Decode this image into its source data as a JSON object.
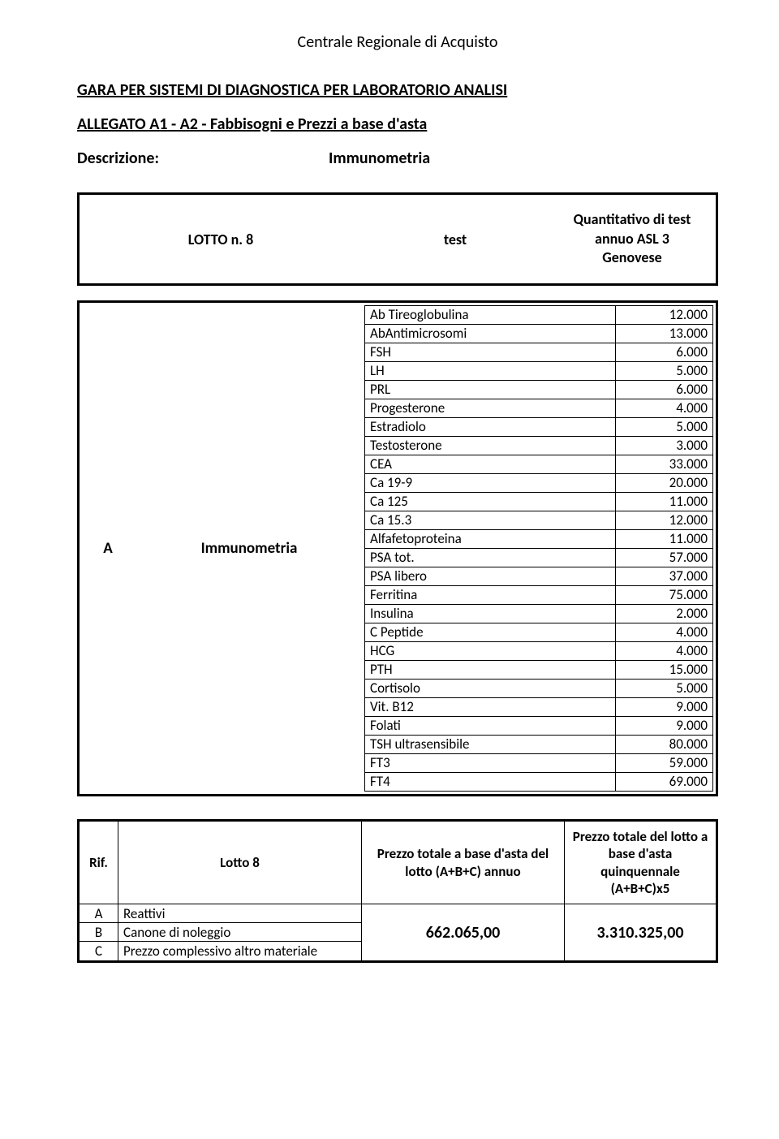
{
  "header": {
    "org": "Centrale Regionale di Acquisto",
    "title": "GARA PER SISTEMI DI DIAGNOSTICA PER LABORATORIO ANALISI",
    "subtitle": "ALLEGATO A1 - A2 - Fabbisogni e Prezzi a base d'asta",
    "desc_label": "Descrizione:",
    "desc_value": "Immunometria"
  },
  "lotto": {
    "name": "LOTTO n. 8",
    "mid": "test",
    "right": "Quantitativo di test annuo ASL 3 Genovese"
  },
  "section": {
    "code": "A",
    "label": "Immunometria",
    "rows": [
      {
        "name": "Ab Tireoglobulina",
        "value": "12.000"
      },
      {
        "name": "AbAntimicrosomi",
        "value": "13.000"
      },
      {
        "name": "FSH",
        "value": "6.000"
      },
      {
        "name": "LH",
        "value": "5.000"
      },
      {
        "name": "PRL",
        "value": "6.000"
      },
      {
        "name": "Progesterone",
        "value": "4.000"
      },
      {
        "name": "Estradiolo",
        "value": "5.000"
      },
      {
        "name": "Testosterone",
        "value": "3.000"
      },
      {
        "name": "CEA",
        "value": "33.000"
      },
      {
        "name": "Ca 19-9",
        "value": "20.000"
      },
      {
        "name": "Ca 125",
        "value": "11.000"
      },
      {
        "name": "Ca 15.3",
        "value": "12.000"
      },
      {
        "name": "Alfafetoproteina",
        "value": "11.000"
      },
      {
        "name": "PSA tot.",
        "value": "57.000"
      },
      {
        "name": "PSA libero",
        "value": "37.000"
      },
      {
        "name": "Ferritina",
        "value": "75.000"
      },
      {
        "name": "Insulina",
        "value": "2.000"
      },
      {
        "name": "C Peptide",
        "value": "4.000"
      },
      {
        "name": "HCG",
        "value": "4.000"
      },
      {
        "name": "PTH",
        "value": "15.000"
      },
      {
        "name": "Cortisolo",
        "value": "5.000"
      },
      {
        "name": "Vit. B12",
        "value": "9.000"
      },
      {
        "name": "Folati",
        "value": "9.000"
      },
      {
        "name": "TSH ultrasensibile",
        "value": "80.000"
      },
      {
        "name": "FT3",
        "value": "59.000"
      },
      {
        "name": "FT4",
        "value": "69.000"
      }
    ]
  },
  "summary": {
    "head": {
      "rif": "Rif.",
      "lotto": "Lotto 8",
      "prezzo1": "Prezzo totale a base d'asta del lotto (A+B+C) annuo",
      "prezzo2": "Prezzo totale del lotto a base d'asta quinquennale (A+B+C)x5"
    },
    "items": [
      {
        "code": "A",
        "label": "Reattivi"
      },
      {
        "code": "B",
        "label": "Canone di noleggio"
      },
      {
        "code": "C",
        "label": "Prezzo complessivo altro materiale"
      }
    ],
    "val_annuo": "662.065,00",
    "val_quinq": "3.310.325,00"
  },
  "colors": {
    "text": "#000000",
    "background": "#ffffff",
    "border": "#000000"
  }
}
